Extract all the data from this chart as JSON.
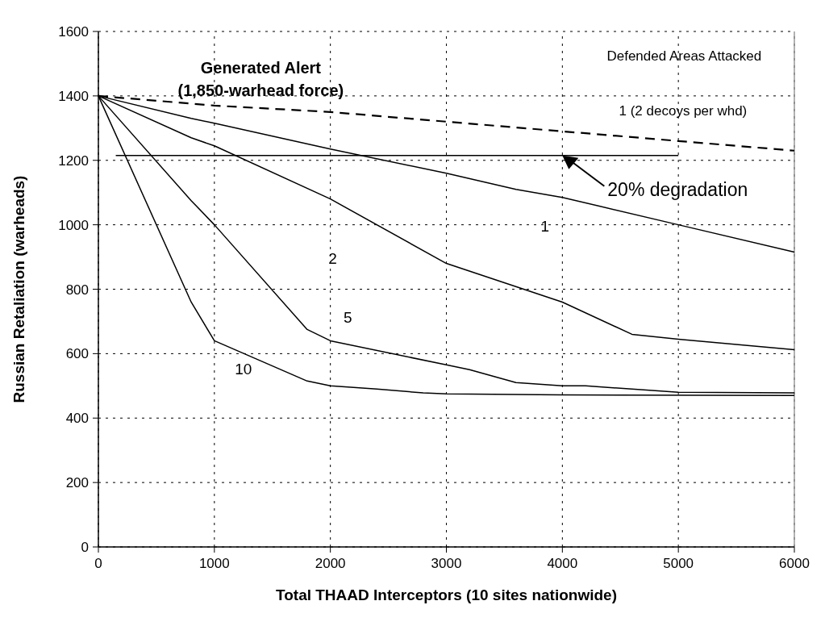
{
  "chart_data": {
    "type": "line",
    "title": "Generated Alert",
    "subtitle": "(1,850-warhead force)",
    "xlabel": "Total THAAD Interceptors (10 sites nationwide)",
    "ylabel": "Russian Retaliation (warheads)",
    "xlim": [
      0,
      6000
    ],
    "xticks": [
      0,
      1000,
      2000,
      3000,
      4000,
      5000,
      6000
    ],
    "ylim": [
      0,
      1600
    ],
    "yticks": [
      0,
      200,
      400,
      600,
      800,
      1000,
      1200,
      1400,
      1600
    ],
    "grid": true,
    "legend": false,
    "marker": "none",
    "line_style": "solid",
    "series": [
      {
        "name": "1 (2 decoys per whd)",
        "color": "#000000",
        "line_style": "dashed",
        "x": [
          0,
          1000,
          2000,
          3000,
          4000,
          5000,
          6000
        ],
        "values": [
          1400,
          1370,
          1350,
          1320,
          1290,
          1260,
          1230
        ]
      },
      {
        "name": "1",
        "color": "#000000",
        "x": [
          0,
          800,
          1000,
          2000,
          3000,
          3600,
          4000,
          5000,
          6000
        ],
        "values": [
          1400,
          1330,
          1315,
          1235,
          1160,
          1110,
          1085,
          1000,
          915
        ]
      },
      {
        "name": "2",
        "color": "#000000",
        "x": [
          0,
          800,
          1000,
          2000,
          3000,
          4000,
          4600,
          5000,
          6000
        ],
        "values": [
          1400,
          1270,
          1245,
          1080,
          880,
          760,
          660,
          645,
          612
        ]
      },
      {
        "name": "5",
        "color": "#000000",
        "x": [
          0,
          800,
          1000,
          1800,
          2000,
          3000,
          3200,
          3600,
          4000,
          4200,
          5000,
          6000
        ],
        "values": [
          1400,
          1075,
          1000,
          675,
          640,
          565,
          550,
          510,
          500,
          500,
          480,
          478
        ]
      },
      {
        "name": "10",
        "color": "#000000",
        "x": [
          0,
          800,
          1000,
          1800,
          2000,
          2400,
          2800,
          3000,
          4000,
          6000
        ],
        "values": [
          1400,
          760,
          640,
          515,
          500,
          490,
          478,
          475,
          472,
          470
        ]
      },
      {
        "color": "#000000",
        "x": [
          150,
          5000
        ],
        "values": [
          1215,
          1215
        ]
      }
    ],
    "annotations": [
      "Defended Areas Attacked",
      {
        "text": "20% degradation",
        "x": 4000,
        "y": 1215
      }
    ]
  }
}
